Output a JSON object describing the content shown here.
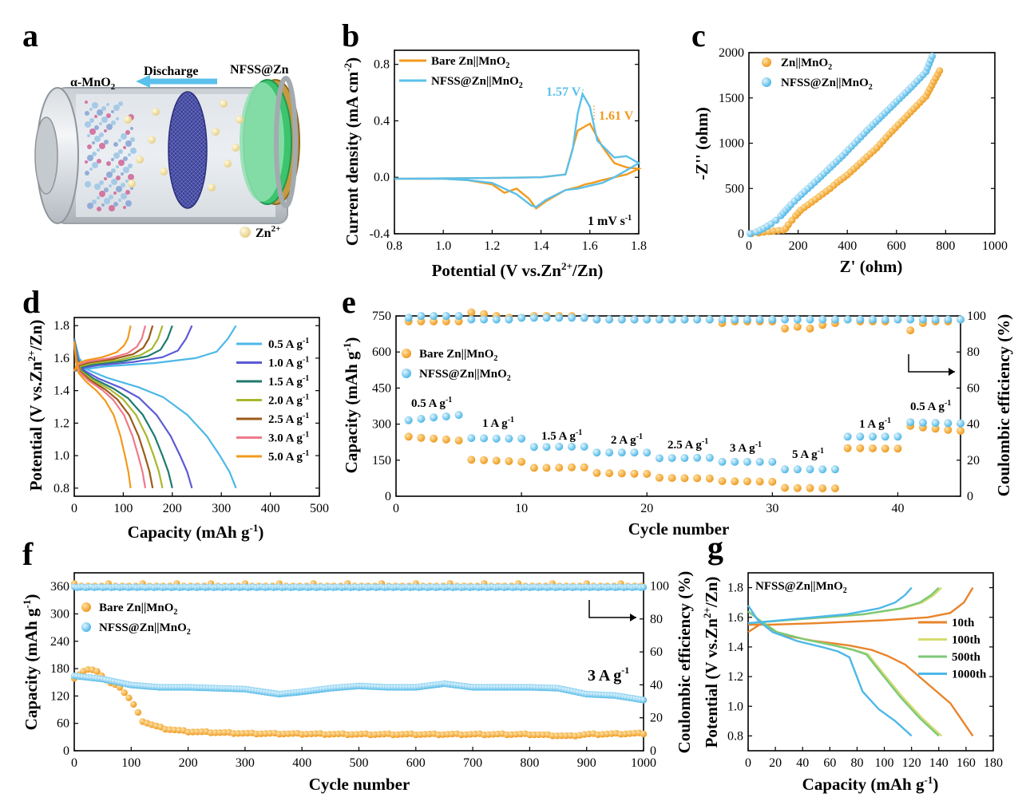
{
  "colors": {
    "orange": "#F29A1D",
    "blue": "#5BC0EB",
    "orange_dot": "#F4A93A",
    "blue_dot": "#66C6EE"
  },
  "panel_a": {
    "label": "a",
    "mno2": "α-MnO",
    "mno2_sub": "2",
    "discharge": "Discharge",
    "nfss": "NFSS@Zn",
    "zn": "Zn",
    "zn_sup": "2+"
  },
  "panel_b": {
    "label": "b",
    "legend": [
      {
        "pre": "Bare Zn||MnO",
        "sub": "2",
        "color": "#F29A1D"
      },
      {
        "pre": "NFSS@Zn||MnO",
        "sub": "2",
        "color": "#5BC0EB"
      }
    ],
    "annotations": [
      "1.57 V",
      "1.61 V"
    ],
    "rate_pre": "1 mV s",
    "rate_sup": "-1",
    "ylabel_pre": "Current density (mA cm",
    "ylabel_sup": "-2",
    "ylabel_post": ")",
    "xlabel_pre": "Potential (V vs.Zn",
    "xlabel_sup": "2+",
    "xlabel_post": "/Zn)"
  },
  "panel_c": {
    "label": "c",
    "legend": [
      {
        "pre": "Zn||MnO",
        "sub": "2"
      },
      {
        "pre": "NFSS@Zn||MnO",
        "sub": "2"
      }
    ],
    "xlabel": "Z' (ohm)",
    "ylabel": "-Z'' (ohm)"
  },
  "panel_d": {
    "label": "d",
    "legend": [
      {
        "label": "0.5 A g",
        "sup": "-1",
        "color": "#4DB8E8"
      },
      {
        "label": "1.0 A g",
        "sup": "-1",
        "color": "#5B5BD6"
      },
      {
        "label": "1.5 A g",
        "sup": "-1",
        "color": "#1F7A6E"
      },
      {
        "label": "2.0 A g",
        "sup": "-1",
        "color": "#A8B82E"
      },
      {
        "label": "2.5 A g",
        "sup": "-1",
        "color": "#9B5A1A"
      },
      {
        "label": "3.0 A g",
        "sup": "-1",
        "color": "#EE7A8A"
      },
      {
        "label": "5.0 A g",
        "sup": "-1",
        "color": "#F29A1D"
      }
    ],
    "xlabel_pre": "Capacity (mAh g",
    "xlabel_sup": "-1",
    "xlabel_post": ")",
    "ylabel_pre": "Potential (V vs.Zn",
    "ylabel_sup": "2+",
    "ylabel_post": "/Zn)"
  },
  "panel_e": {
    "label": "e",
    "legend": [
      {
        "pre": "Bare Zn||MnO",
        "sub": "2"
      },
      {
        "pre": "NFSS@Zn||MnO",
        "sub": "2"
      }
    ],
    "rate_labels": [
      {
        "pre": "0.5 A g",
        "sup": "-1"
      },
      {
        "pre": "1 A g",
        "sup": "-1"
      },
      {
        "pre": "1.5 A g",
        "sup": "-1"
      },
      {
        "pre": "2 A g",
        "sup": "-1"
      },
      {
        "pre": "2.5 A g",
        "sup": "-1"
      },
      {
        "pre": "3 A g",
        "sup": "-1"
      },
      {
        "pre": "5 A g",
        "sup": "-1"
      },
      {
        "pre": "1 A g",
        "sup": "-1"
      },
      {
        "pre": "0.5 A g",
        "sup": "-1"
      }
    ],
    "xlabel": "Cycle number",
    "ylabel_pre": "Capacity (mAh g",
    "ylabel_sup": "-1",
    "ylabel_post": ")",
    "y2label": "Coulombic efficiency (%)"
  },
  "panel_f": {
    "label": "f",
    "legend": [
      {
        "pre": "Bare Zn||MnO",
        "sub": "2"
      },
      {
        "pre": "NFSS@Zn||MnO",
        "sub": "2"
      }
    ],
    "rate_pre": "3 A g",
    "rate_sup": "-1",
    "xlabel": "Cycle number",
    "ylabel_pre": "Capacity (mAh g",
    "ylabel_sup": "-1",
    "ylabel_post": ")",
    "y2label": "Coulombic efficiency (%)"
  },
  "panel_g": {
    "label": "g",
    "title_pre": "NFSS@Zn||MnO",
    "title_sub": "2",
    "legend": [
      {
        "label": "10th",
        "color": "#E8842A"
      },
      {
        "label": "100th",
        "color": "#D6DC70"
      },
      {
        "label": "500th",
        "color": "#7CC97A"
      },
      {
        "label": "1000th",
        "color": "#4DB8E8"
      }
    ],
    "xlabel_pre": "Capacity (mAh g",
    "xlabel_sup": "-1",
    "xlabel_post": ")",
    "ylabel_pre": "Potential (V vs.Zn",
    "ylabel_sup": "2+",
    "ylabel_post": "/Zn)"
  },
  "chart_data": [
    {
      "id": "b",
      "type": "line",
      "title": "",
      "xlabel": "Potential (V vs.Zn2+/Zn)",
      "ylabel": "Current density (mA cm-2)",
      "xlim": [
        0.8,
        1.8
      ],
      "ylim": [
        -0.4,
        0.9
      ],
      "xticks": [
        0.8,
        1.0,
        1.2,
        1.4,
        1.6,
        1.8
      ],
      "yticks": [
        -0.4,
        0.0,
        0.4,
        0.8
      ],
      "series": [
        {
          "name": "Bare Zn||MnO2",
          "x": [
            0.8,
            1.0,
            1.1,
            1.2,
            1.25,
            1.3,
            1.35,
            1.38,
            1.42,
            1.5,
            1.55,
            1.58,
            1.61,
            1.65,
            1.7,
            1.75,
            1.8,
            1.75,
            1.7,
            1.65,
            1.6,
            1.55,
            1.5,
            1.4,
            1.2,
            1.0,
            0.8
          ],
          "y": [
            -0.01,
            -0.01,
            -0.02,
            -0.05,
            -0.11,
            -0.08,
            -0.15,
            -0.22,
            -0.17,
            -0.09,
            -0.07,
            -0.05,
            -0.04,
            -0.02,
            0.0,
            0.02,
            0.06,
            0.07,
            0.1,
            0.22,
            0.38,
            0.33,
            0.02,
            0.0,
            -0.005,
            -0.008,
            -0.01
          ]
        },
        {
          "name": "NFSS@Zn||MnO2",
          "x": [
            0.8,
            1.0,
            1.1,
            1.2,
            1.3,
            1.36,
            1.38,
            1.42,
            1.5,
            1.55,
            1.6,
            1.65,
            1.7,
            1.75,
            1.8,
            1.75,
            1.7,
            1.63,
            1.6,
            1.57,
            1.55,
            1.53,
            1.5,
            1.4,
            1.2,
            1.0,
            0.8
          ],
          "y": [
            -0.01,
            -0.01,
            -0.02,
            -0.04,
            -0.12,
            -0.2,
            -0.21,
            -0.16,
            -0.09,
            -0.08,
            -0.06,
            -0.04,
            0.0,
            0.05,
            0.1,
            0.15,
            0.14,
            0.26,
            0.5,
            0.59,
            0.45,
            0.2,
            0.02,
            0.0,
            -0.005,
            -0.008,
            -0.01
          ]
        }
      ]
    },
    {
      "id": "c",
      "type": "scatter",
      "xlabel": "Z' (ohm)",
      "ylabel": "-Z'' (ohm)",
      "xlim": [
        0,
        1000
      ],
      "ylim": [
        0,
        2000
      ],
      "xticks": [
        0,
        200,
        400,
        600,
        800,
        1000
      ],
      "yticks": [
        0,
        500,
        1000,
        1500,
        2000
      ],
      "series": [
        {
          "name": "Zn||MnO2",
          "x": [
            10,
            40,
            80,
            120,
            140,
            150,
            160,
            175,
            190,
            210,
            240,
            270,
            300,
            330,
            360,
            400,
            440,
            480,
            520,
            570,
            620,
            670,
            720,
            775
          ],
          "y": [
            2,
            10,
            25,
            35,
            40,
            60,
            100,
            150,
            200,
            260,
            320,
            380,
            440,
            500,
            570,
            650,
            750,
            850,
            950,
            1100,
            1240,
            1380,
            1520,
            1800
          ]
        },
        {
          "name": "NFSS@Zn||MnO2",
          "x": [
            5,
            30,
            60,
            90,
            110,
            130,
            150,
            170,
            200,
            240,
            280,
            330,
            380,
            430,
            480,
            540,
            600,
            660,
            720,
            745
          ],
          "y": [
            2,
            20,
            60,
            110,
            150,
            200,
            260,
            320,
            400,
            500,
            600,
            730,
            860,
            1000,
            1140,
            1300,
            1460,
            1620,
            1790,
            1960
          ]
        }
      ]
    },
    {
      "id": "d",
      "type": "line",
      "xlabel": "Capacity (mAh g-1)",
      "ylabel": "Potential (V vs.Zn2+/Zn)",
      "xlim": [
        0,
        500
      ],
      "ylim": [
        0.75,
        1.85
      ],
      "xticks": [
        0,
        100,
        200,
        300,
        400,
        500
      ],
      "yticks": [
        0.8,
        1.0,
        1.2,
        1.4,
        1.6,
        1.8
      ],
      "series": [
        {
          "name": "0.5 A g-1",
          "capacity": 330
        },
        {
          "name": "1.0 A g-1",
          "capacity": 240
        },
        {
          "name": "1.5 A g-1",
          "capacity": 200
        },
        {
          "name": "2.0 A g-1",
          "capacity": 180
        },
        {
          "name": "2.5 A g-1",
          "capacity": 160
        },
        {
          "name": "3.0 A g-1",
          "capacity": 145
        },
        {
          "name": "5.0 A g-1",
          "capacity": 115
        }
      ]
    },
    {
      "id": "e",
      "type": "scatter",
      "xlabel": "Cycle number",
      "ylabel": "Capacity (mAh g-1)",
      "y2label": "Coulombic efficiency (%)",
      "xlim": [
        0,
        45
      ],
      "ylim": [
        0,
        750
      ],
      "y2lim": [
        0,
        100
      ],
      "xticks": [
        0,
        10,
        20,
        30,
        40
      ],
      "yticks": [
        0,
        150,
        300,
        450,
        600,
        750
      ],
      "y2ticks": [
        0,
        20,
        40,
        60,
        80,
        100
      ],
      "cycles": [
        1,
        2,
        3,
        4,
        5,
        6,
        7,
        8,
        9,
        10,
        11,
        12,
        13,
        14,
        15,
        16,
        17,
        18,
        19,
        20,
        21,
        22,
        23,
        24,
        25,
        26,
        27,
        28,
        29,
        30,
        31,
        32,
        33,
        34,
        35,
        36,
        37,
        38,
        39,
        40,
        41,
        42,
        43,
        44,
        45
      ],
      "series": [
        {
          "name": "Bare Zn||MnO2 capacity",
          "values": [
            248,
            243,
            240,
            236,
            232,
            152,
            150,
            148,
            146,
            143,
            118,
            118,
            119,
            120,
            120,
            97,
            96,
            95,
            94,
            93,
            77,
            76,
            75,
            75,
            74,
            63,
            62,
            62,
            61,
            60,
            35,
            34,
            34,
            33,
            33,
            200,
            200,
            199,
            198,
            198,
            293,
            286,
            281,
            276,
            272
          ]
        },
        {
          "name": "NFSS@Zn||MnO2 capacity",
          "values": [
            316,
            322,
            328,
            332,
            338,
            242,
            241,
            240,
            240,
            240,
            205,
            205,
            206,
            206,
            206,
            182,
            182,
            182,
            182,
            182,
            158,
            159,
            159,
            160,
            160,
            143,
            143,
            143,
            143,
            143,
            112,
            112,
            112,
            112,
            112,
            248,
            248,
            248,
            248,
            248,
            308,
            306,
            305,
            304,
            303
          ]
        },
        {
          "name": "Bare Zn||MnO2 CE",
          "values": [
            97,
            97,
            97,
            97,
            97,
            102,
            101,
            100,
            99,
            99,
            100,
            100,
            100,
            100,
            99,
            98,
            98,
            98,
            98,
            98,
            98,
            98,
            98,
            98,
            98,
            96,
            97,
            97,
            97,
            97,
            93,
            94,
            93,
            95,
            96,
            98,
            97,
            97,
            97,
            98,
            92,
            96,
            97,
            97,
            98
          ]
        },
        {
          "name": "NFSS@Zn||MnO2 CE",
          "values": [
            99,
            100,
            100,
            100,
            100,
            98,
            98,
            98,
            98,
            99,
            99,
            99,
            99,
            99,
            99,
            98,
            98,
            98,
            98,
            98,
            98,
            98,
            98,
            98,
            98,
            98,
            98,
            98,
            98,
            98,
            98,
            98,
            98,
            98,
            98,
            98,
            98,
            98,
            98,
            98,
            98,
            98,
            98,
            98,
            98
          ]
        }
      ]
    },
    {
      "id": "f",
      "type": "scatter",
      "xlabel": "Cycle number",
      "ylabel": "Capacity (mAh g-1)",
      "y2label": "Coulombic efficiency (%)",
      "xlim": [
        0,
        1000
      ],
      "ylim": [
        0,
        390
      ],
      "y2lim": [
        0,
        108
      ],
      "xticks": [
        0,
        100,
        200,
        300,
        400,
        500,
        600,
        700,
        800,
        900,
        1000
      ],
      "yticks": [
        0,
        60,
        120,
        180,
        240,
        300,
        360
      ],
      "y2ticks": [
        0,
        20,
        40,
        60,
        80,
        100
      ],
      "series": [
        {
          "name": "Bare Zn||MnO2 capacity",
          "x": [
            0,
            20,
            40,
            60,
            80,
            100,
            120,
            140,
            160,
            200,
            300,
            400,
            500,
            600,
            700,
            800,
            870,
            900,
            1000
          ],
          "y": [
            160,
            178,
            175,
            150,
            140,
            110,
            65,
            55,
            48,
            42,
            38,
            37,
            36,
            36,
            36,
            36,
            32,
            36,
            38
          ]
        },
        {
          "name": "NFSS@Zn||MnO2 capacity",
          "x": [
            0,
            50,
            100,
            150,
            200,
            300,
            360,
            400,
            450,
            500,
            550,
            600,
            650,
            700,
            750,
            800,
            850,
            900,
            950,
            1000
          ],
          "y": [
            165,
            158,
            145,
            140,
            140,
            136,
            125,
            130,
            138,
            143,
            140,
            140,
            148,
            140,
            140,
            140,
            138,
            125,
            122,
            112
          ]
        },
        {
          "name": "Bare Zn||MnO2 CE",
          "x": [
            0,
            1000
          ],
          "y": [
            100,
            100
          ]
        },
        {
          "name": "NFSS@Zn||MnO2 CE",
          "x": [
            0,
            1000
          ],
          "y": [
            99.5,
            99.5
          ]
        }
      ]
    },
    {
      "id": "g",
      "type": "line",
      "xlabel": "Capacity (mAh g-1)",
      "ylabel": "Potential (V vs.Zn2+/Zn)",
      "xlim": [
        0,
        180
      ],
      "ylim": [
        0.7,
        1.9
      ],
      "xticks": [
        0,
        20,
        40,
        60,
        80,
        100,
        120,
        140,
        160,
        180
      ],
      "yticks": [
        0.8,
        1.0,
        1.2,
        1.4,
        1.6,
        1.8
      ],
      "series": [
        {
          "name": "10th",
          "capacity": 165
        },
        {
          "name": "100th",
          "capacity": 142
        },
        {
          "name": "500th",
          "capacity": 140
        },
        {
          "name": "1000th",
          "capacity": 120
        }
      ]
    }
  ]
}
